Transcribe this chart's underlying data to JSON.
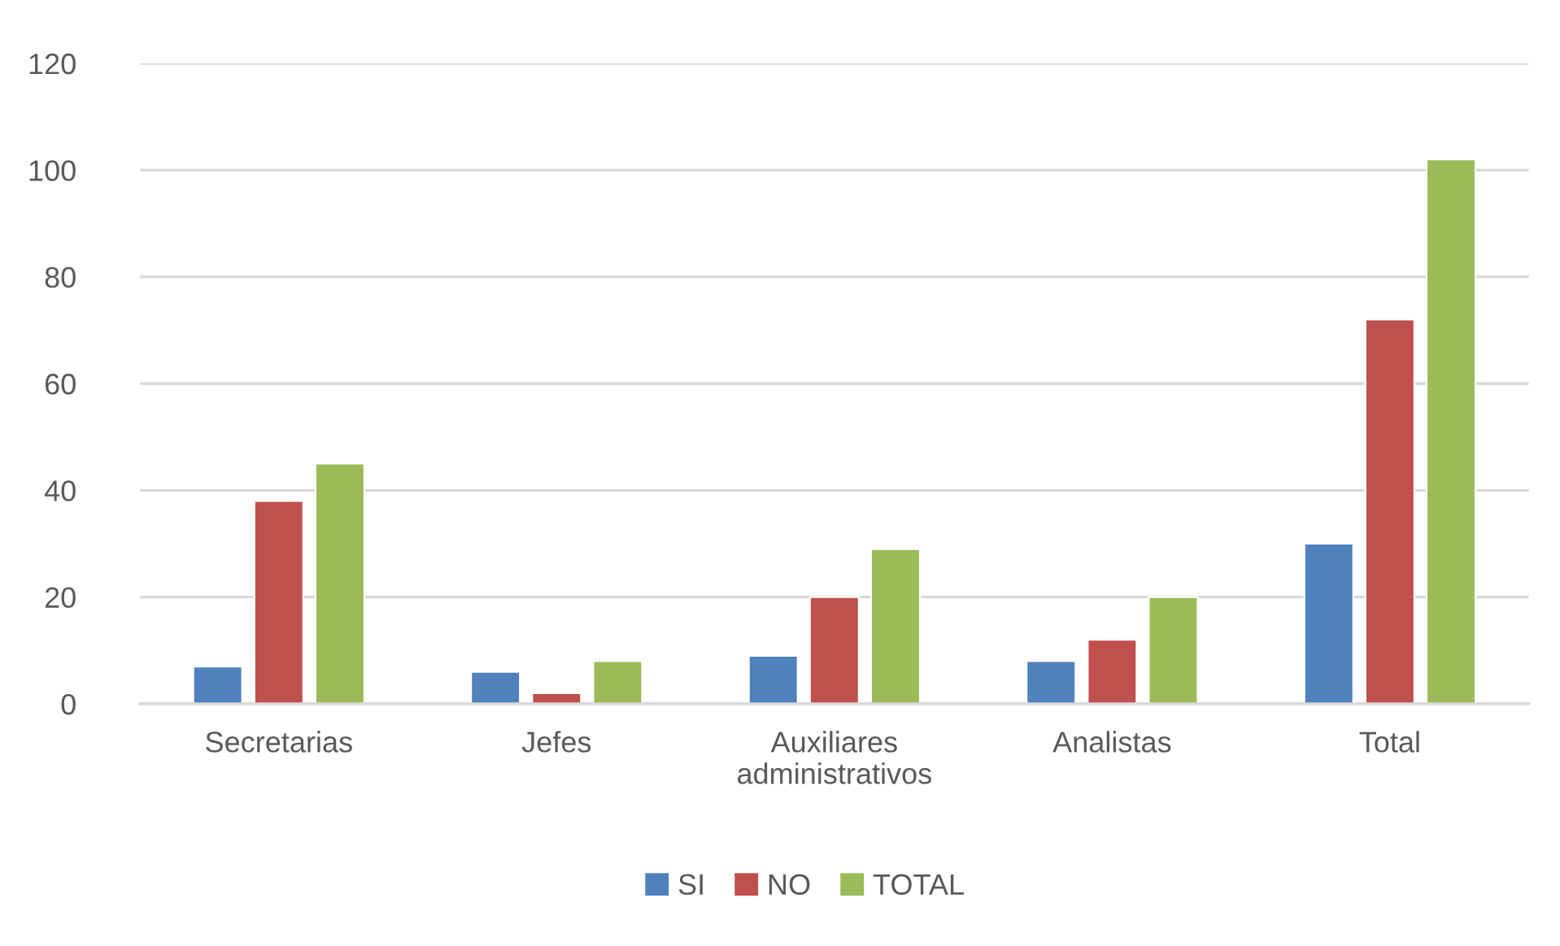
{
  "chart_data": {
    "type": "bar",
    "categories": [
      "Secretarias",
      "Jefes",
      "Auxiliares\nadministrativos",
      "Analistas",
      "Total"
    ],
    "series": [
      {
        "name": "SI",
        "color": "#4f81bd",
        "values": [
          7,
          6,
          9,
          8,
          30
        ]
      },
      {
        "name": "NO",
        "color": "#c0504d",
        "values": [
          38,
          2,
          20,
          12,
          72
        ]
      },
      {
        "name": "TOTAL",
        "color": "#9bbb59",
        "values": [
          45,
          8,
          29,
          20,
          102
        ]
      }
    ],
    "ylim": [
      0,
      120
    ],
    "yticks": [
      0,
      20,
      40,
      60,
      80,
      100,
      120
    ],
    "grid": "y",
    "legend": "bottom"
  }
}
